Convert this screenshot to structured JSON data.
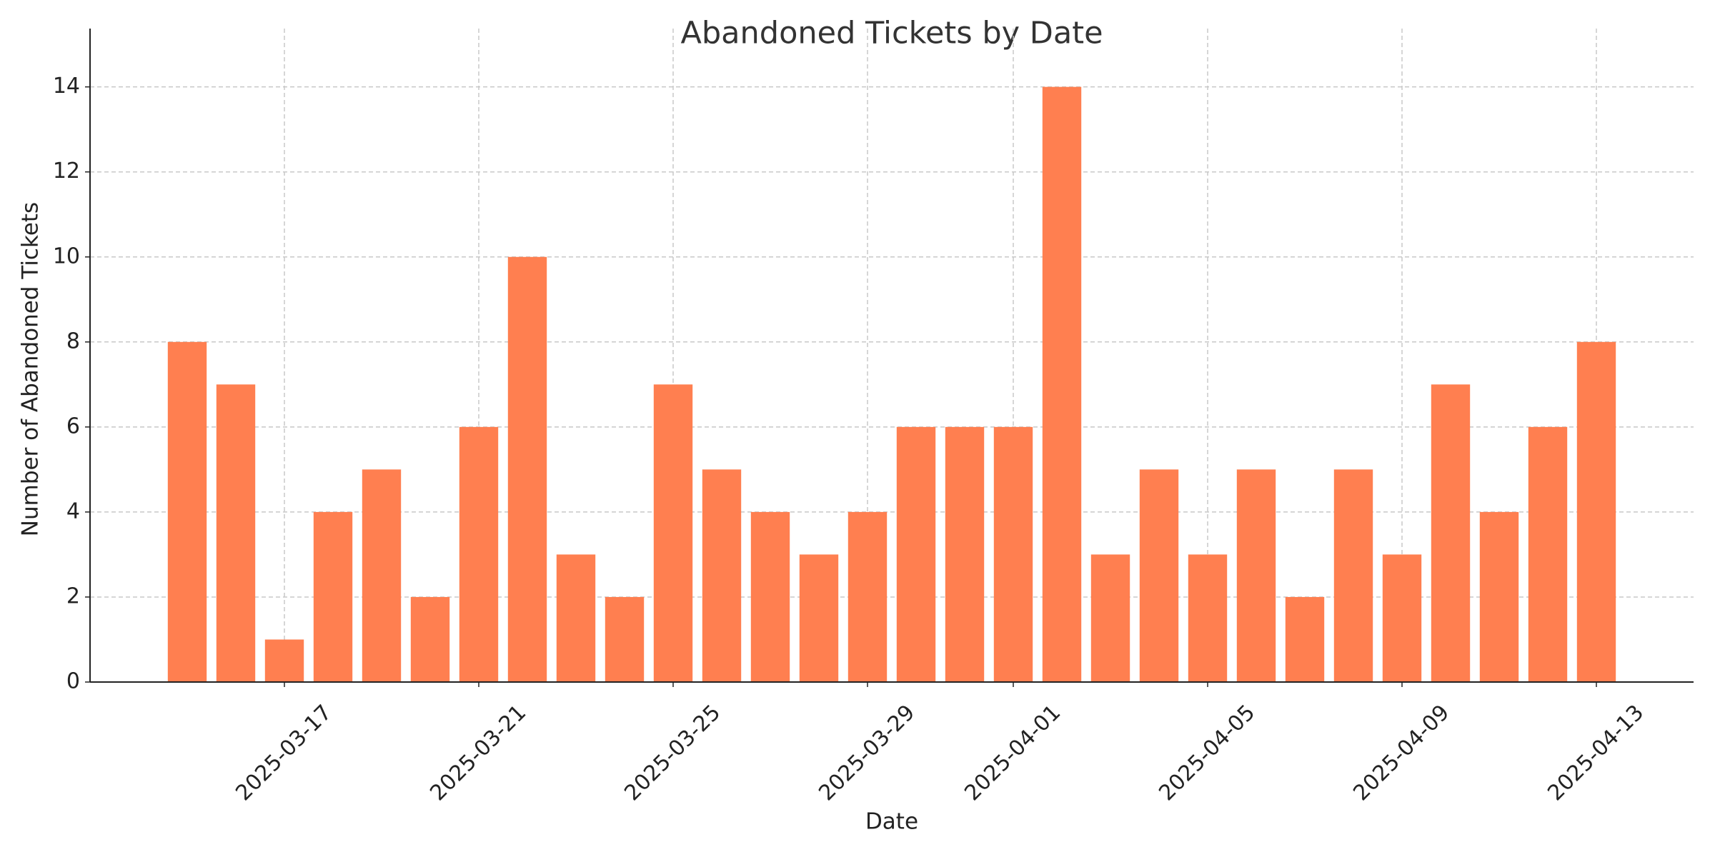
{
  "chart_data": {
    "type": "bar",
    "title": "Abandoned Tickets by Date",
    "x_label": "Date",
    "y_label": "Number of Abandoned Tickets",
    "x": [
      "2025-03-15",
      "2025-03-16",
      "2025-03-17",
      "2025-03-18",
      "2025-03-19",
      "2025-03-20",
      "2025-03-21",
      "2025-03-22",
      "2025-03-23",
      "2025-03-24",
      "2025-03-25",
      "2025-03-26",
      "2025-03-27",
      "2025-03-28",
      "2025-03-29",
      "2025-03-30",
      "2025-03-31",
      "2025-04-01",
      "2025-04-02",
      "2025-04-03",
      "2025-04-04",
      "2025-04-05",
      "2025-04-06",
      "2025-04-07",
      "2025-04-08",
      "2025-04-09",
      "2025-04-10",
      "2025-04-11",
      "2025-04-12",
      "2025-04-13"
    ],
    "values": [
      8,
      7,
      1,
      4,
      5,
      2,
      6,
      10,
      3,
      2,
      7,
      5,
      4,
      3,
      4,
      6,
      6,
      6,
      14,
      3,
      5,
      3,
      5,
      2,
      5,
      3,
      7,
      4,
      6,
      8
    ],
    "color": "#ff7f50",
    "xlim": [
      "2025-03-13",
      "2025-04-15"
    ],
    "xticks": [
      "2025-03-17",
      "2025-03-21",
      "2025-03-25",
      "2025-03-29",
      "2025-04-01",
      "2025-04-05",
      "2025-04-09",
      "2025-04-13"
    ],
    "ylim": [
      0,
      14.7
    ],
    "yticks": [
      0,
      2,
      4,
      6,
      8,
      10,
      12,
      14
    ],
    "grid": true
  }
}
